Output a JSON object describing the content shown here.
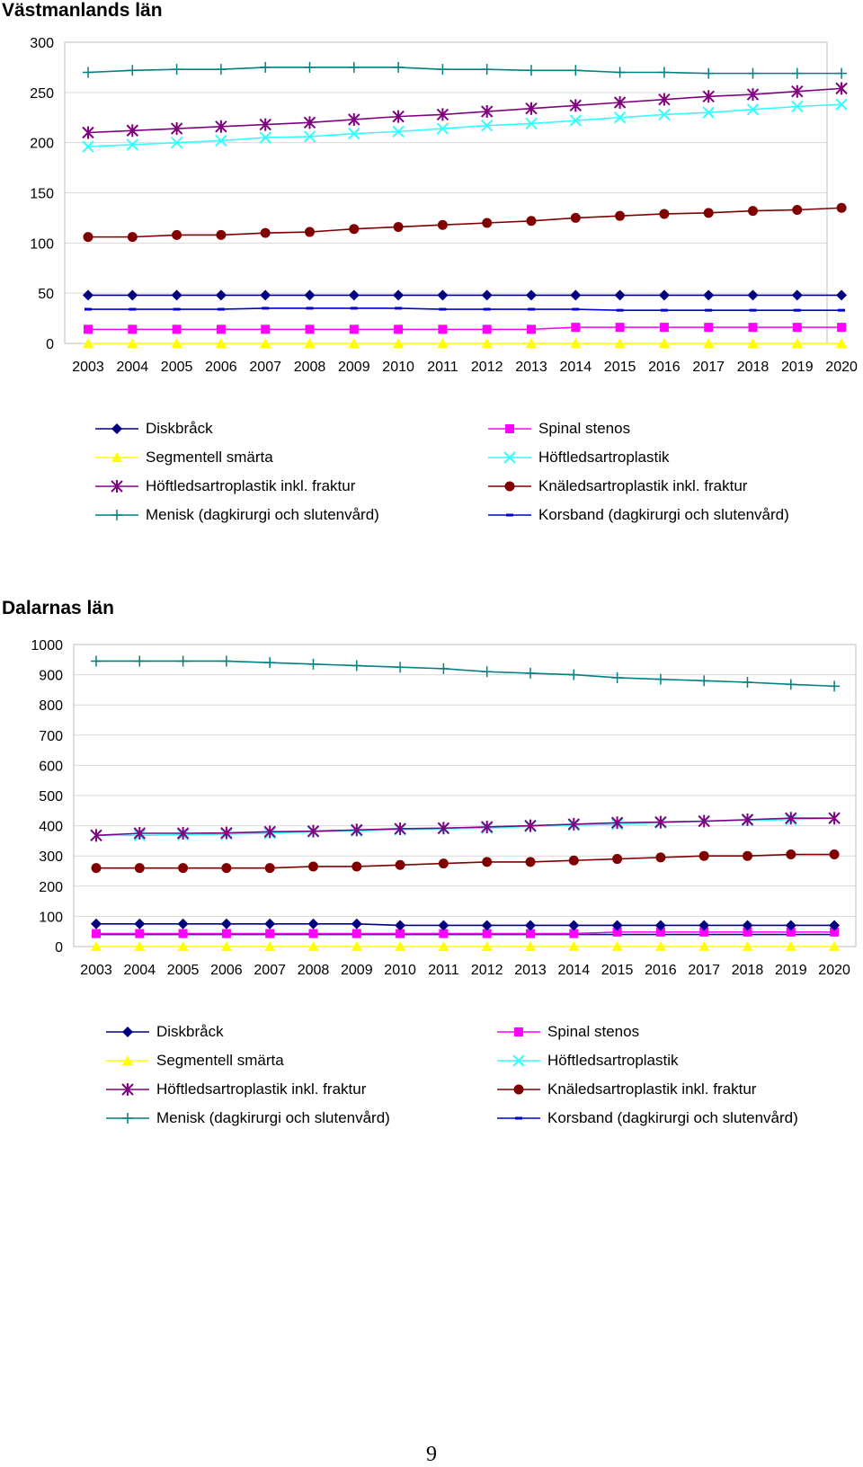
{
  "page_number": "9",
  "legend_labels": {
    "diskbrack": "Diskbråck",
    "spinal": "Spinal stenos",
    "segmentell": "Segmentell smärta",
    "hoft": "Höftledsartroplastik",
    "hoft_inkl": "Höftledsartroplastik inkl. fraktur",
    "kna_inkl": "Knäledsartroplastik inkl. fraktur",
    "menisk": "Menisk (dagkirurgi och slutenvård)",
    "korsband": "Korsband (dagkirurgi och slutenvård)"
  },
  "chart_data": [
    {
      "type": "line",
      "title": "Västmanlands län",
      "categories": [
        "2003",
        "2004",
        "2005",
        "2006",
        "2007",
        "2008",
        "2009",
        "2010",
        "2011",
        "2012",
        "2013",
        "2014",
        "2015",
        "2016",
        "2017",
        "2018",
        "2019",
        "2020"
      ],
      "ylim": [
        0,
        300
      ],
      "yticks": [
        0,
        50,
        100,
        150,
        200,
        250,
        300
      ],
      "grid": true,
      "legend_position": "bottom",
      "series": [
        {
          "key": "diskbrack",
          "name": "Diskbråck",
          "color": "#000080",
          "marker": "diamond",
          "values": [
            48,
            48,
            48,
            48,
            48,
            48,
            48,
            48,
            48,
            48,
            48,
            48,
            48,
            48,
            48,
            48,
            48,
            48
          ]
        },
        {
          "key": "spinal",
          "name": "Spinal stenos",
          "color": "#FF00FF",
          "marker": "square",
          "values": [
            14,
            14,
            14,
            14,
            14,
            14,
            14,
            14,
            14,
            14,
            14,
            16,
            16,
            16,
            16,
            16,
            16,
            16
          ]
        },
        {
          "key": "segmentell",
          "name": "Segmentell smärta",
          "color": "#FFFF00",
          "marker": "triangle",
          "values": [
            0,
            0,
            0,
            0,
            0,
            0,
            0,
            0,
            0,
            0,
            0,
            0,
            0,
            0,
            0,
            0,
            0,
            0
          ]
        },
        {
          "key": "hoft",
          "name": "Höftledsartroplastik",
          "color": "#33FFFF",
          "marker": "x",
          "values": [
            196,
            198,
            200,
            202,
            205,
            206,
            209,
            211,
            214,
            217,
            219,
            222,
            225,
            228,
            230,
            233,
            236,
            238
          ]
        },
        {
          "key": "hoft_inkl",
          "name": "Höftledsartroplastik inkl. fraktur",
          "color": "#800080",
          "marker": "star",
          "values": [
            210,
            212,
            214,
            216,
            218,
            220,
            223,
            226,
            228,
            231,
            234,
            237,
            240,
            243,
            246,
            248,
            251,
            254
          ]
        },
        {
          "key": "kna_inkl",
          "name": "Knäledsartroplastik inkl. fraktur",
          "color": "#800000",
          "marker": "circle",
          "values": [
            106,
            106,
            108,
            108,
            110,
            111,
            114,
            116,
            118,
            120,
            122,
            125,
            127,
            129,
            130,
            132,
            133,
            135
          ]
        },
        {
          "key": "menisk",
          "name": "Menisk (dagkirurgi och slutenvård)",
          "color": "#008080",
          "marker": "plus",
          "values": [
            270,
            272,
            273,
            273,
            275,
            275,
            275,
            275,
            273,
            273,
            272,
            272,
            270,
            270,
            269,
            269,
            269,
            269
          ]
        },
        {
          "key": "korsband",
          "name": "Korsband (dagkirurgi och slutenvård)",
          "color": "#0000CC",
          "marker": "dash",
          "values": [
            34,
            34,
            34,
            34,
            35,
            35,
            35,
            35,
            34,
            34,
            34,
            34,
            33,
            33,
            33,
            33,
            33,
            33
          ]
        }
      ]
    },
    {
      "type": "line",
      "title": "Dalarnas län",
      "categories": [
        "2003",
        "2004",
        "2005",
        "2006",
        "2007",
        "2008",
        "2009",
        "2010",
        "2011",
        "2012",
        "2013",
        "2014",
        "2015",
        "2016",
        "2017",
        "2018",
        "2019",
        "2020"
      ],
      "ylim": [
        0,
        1000
      ],
      "yticks": [
        0,
        100,
        200,
        300,
        400,
        500,
        600,
        700,
        800,
        900,
        1000
      ],
      "grid": true,
      "legend_position": "bottom",
      "series": [
        {
          "key": "diskbrack",
          "name": "Diskbråck",
          "color": "#000080",
          "marker": "diamond",
          "values": [
            75,
            75,
            75,
            75,
            75,
            75,
            75,
            70,
            70,
            70,
            70,
            70,
            70,
            70,
            70,
            70,
            70,
            70
          ]
        },
        {
          "key": "spinal",
          "name": "Spinal stenos",
          "color": "#FF00FF",
          "marker": "square",
          "values": [
            43,
            43,
            43,
            43,
            43,
            43,
            43,
            43,
            43,
            43,
            43,
            43,
            48,
            48,
            48,
            48,
            48,
            48
          ]
        },
        {
          "key": "segmentell",
          "name": "Segmentell smärta",
          "color": "#FFFF00",
          "marker": "triangle",
          "values": [
            0,
            0,
            0,
            0,
            0,
            0,
            0,
            0,
            0,
            0,
            0,
            0,
            0,
            0,
            0,
            0,
            0,
            0
          ]
        },
        {
          "key": "hoft",
          "name": "Höftledsartroplastik",
          "color": "#33FFFF",
          "marker": "x",
          "values": [
            368,
            368,
            370,
            372,
            375,
            380,
            383,
            387,
            390,
            392,
            398,
            402,
            405,
            410,
            415,
            418,
            420,
            425
          ]
        },
        {
          "key": "hoft_inkl",
          "name": "Höftledsartroplastik inkl. fraktur",
          "color": "#800080",
          "marker": "star",
          "values": [
            368,
            375,
            375,
            376,
            380,
            382,
            386,
            390,
            392,
            396,
            400,
            405,
            410,
            412,
            415,
            420,
            425,
            425
          ]
        },
        {
          "key": "kna_inkl",
          "name": "Knäledsartroplastik inkl. fraktur",
          "color": "#800000",
          "marker": "circle",
          "values": [
            260,
            260,
            260,
            260,
            260,
            265,
            265,
            270,
            275,
            280,
            280,
            285,
            290,
            295,
            300,
            300,
            305,
            305
          ]
        },
        {
          "key": "menisk",
          "name": "Menisk (dagkirurgi och slutenvård)",
          "color": "#008080",
          "marker": "plus",
          "values": [
            945,
            945,
            945,
            945,
            940,
            935,
            930,
            925,
            920,
            910,
            905,
            900,
            890,
            885,
            880,
            875,
            868,
            862
          ]
        },
        {
          "key": "korsband",
          "name": "Korsband (dagkirurgi och slutenvård)",
          "color": "#0000CC",
          "marker": "dash",
          "values": [
            40,
            40,
            40,
            40,
            40,
            40,
            40,
            40,
            40,
            40,
            40,
            40,
            40,
            40,
            40,
            40,
            40,
            40
          ]
        }
      ]
    }
  ]
}
